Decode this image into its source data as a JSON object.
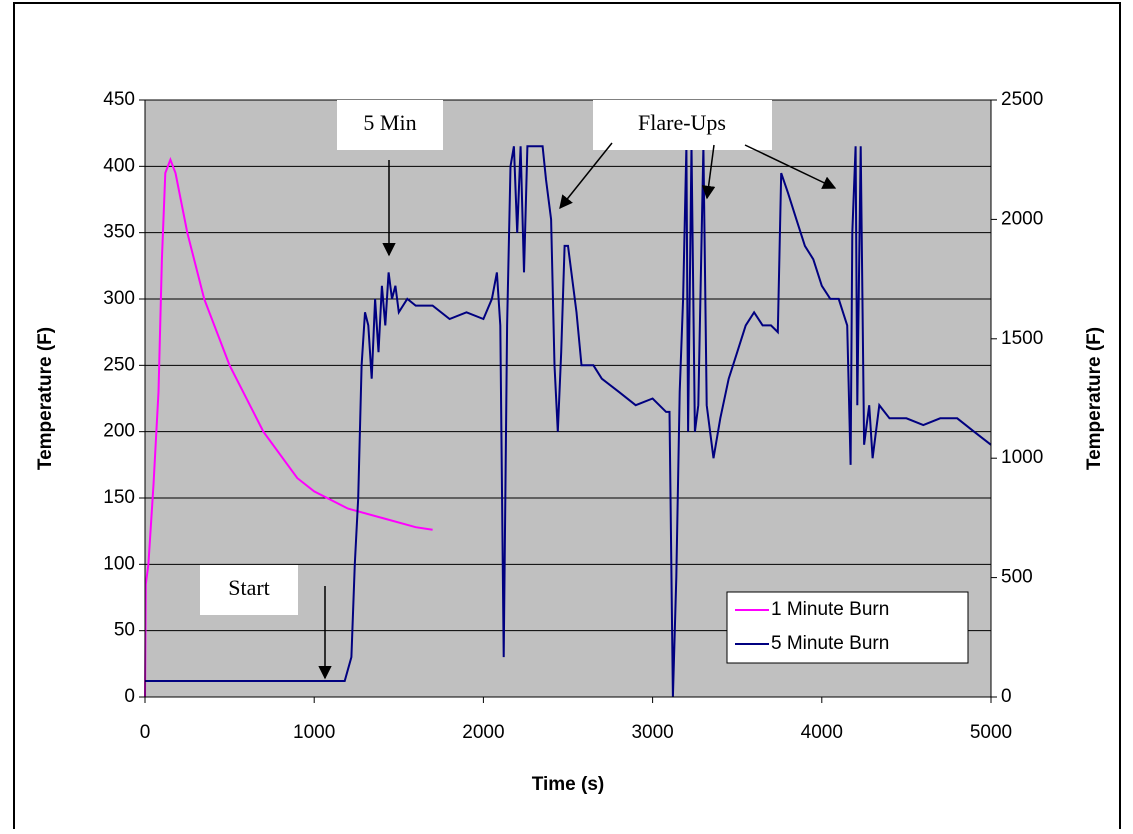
{
  "chart_data": {
    "type": "line",
    "xlabel": "Time (s)",
    "ylabel": "Temperature (F)",
    "y2label": "Temperature (F)",
    "annotations": [
      "5 Min",
      "Flare-Ups",
      "Start"
    ],
    "xlim": [
      0,
      5000
    ],
    "xticks": [
      0,
      1000,
      2000,
      3000,
      4000,
      5000
    ],
    "ylim": [
      0,
      450
    ],
    "yticks": [
      0,
      50,
      100,
      150,
      200,
      250,
      300,
      350,
      400,
      450
    ],
    "y2lim": [
      0,
      2500
    ],
    "y2ticks": [
      0,
      500,
      1000,
      1500,
      2000,
      2500
    ],
    "grid": true,
    "legend": "lower right",
    "series": [
      {
        "name": "1 Minute Burn",
        "color": "#ff00ff",
        "x": [
          0,
          5,
          20,
          50,
          80,
          100,
          120,
          150,
          180,
          250,
          350,
          500,
          700,
          900,
          1000,
          1200,
          1400,
          1600,
          1700
        ],
        "values": [
          0,
          85,
          100,
          160,
          230,
          330,
          395,
          405,
          395,
          350,
          300,
          250,
          200,
          165,
          155,
          142,
          135,
          128,
          126
        ]
      },
      {
        "name": "5 Minute Burn",
        "color": "#000080",
        "axis": "y2",
        "x": [
          0,
          1100,
          1180,
          1220,
          1240,
          1260,
          1280,
          1300,
          1320,
          1340,
          1360,
          1380,
          1400,
          1420,
          1440,
          1460,
          1480,
          1500,
          1550,
          1600,
          1700,
          1800,
          1900,
          2000,
          2050,
          2080,
          2100,
          2120,
          2140,
          2160,
          2180,
          2200,
          2220,
          2240,
          2260,
          2280,
          2350,
          2370,
          2400,
          2420,
          2440,
          2460,
          2480,
          2500,
          2550,
          2580,
          2650,
          2700,
          2800,
          2900,
          3000,
          3080,
          3100,
          3120,
          3140,
          3160,
          3180,
          3200,
          3210,
          3230,
          3250,
          3270,
          3300,
          3320,
          3340,
          3360,
          3400,
          3450,
          3500,
          3550,
          3600,
          3650,
          3700,
          3740,
          3760,
          3800,
          3850,
          3900,
          3950,
          4000,
          4050,
          4100,
          4150,
          4170,
          4180,
          4200,
          4210,
          4230,
          4250,
          4280,
          4300,
          4340,
          4400,
          4500,
          4600,
          4700,
          4800,
          4900,
          5000
        ],
        "values": [
          67,
          67,
          67,
          167,
          556,
          833,
          1389,
          1611,
          1556,
          1333,
          1667,
          1444,
          1722,
          1556,
          1778,
          1667,
          1722,
          1611,
          1667,
          1639,
          1639,
          1583,
          1611,
          1583,
          1667,
          1778,
          1556,
          167,
          1556,
          2222,
          2306,
          1944,
          2306,
          1778,
          2306,
          2306,
          2306,
          2167,
          2000,
          1389,
          1111,
          1444,
          1889,
          1889,
          1611,
          1389,
          1389,
          1333,
          1278,
          1222,
          1250,
          1194,
          1194,
          0,
          500,
          1278,
          1667,
          2306,
          1111,
          2306,
          1111,
          1222,
          2306,
          1222,
          1111,
          1000,
          1167,
          1333,
          1444,
          1556,
          1611,
          1556,
          1556,
          1528,
          2194,
          2111,
          2000,
          1889,
          1833,
          1722,
          1667,
          1667,
          1556,
          972,
          1944,
          2306,
          1222,
          2306,
          1056,
          1222,
          1000,
          1222,
          1167,
          1167,
          1139,
          1167,
          1167,
          1111,
          1056
        ]
      }
    ]
  }
}
